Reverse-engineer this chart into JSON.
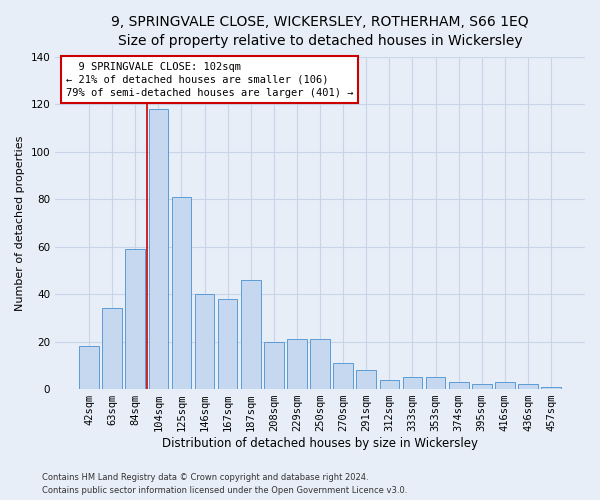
{
  "title1": "9, SPRINGVALE CLOSE, WICKERSLEY, ROTHERHAM, S66 1EQ",
  "title2": "Size of property relative to detached houses in Wickersley",
  "xlabel": "Distribution of detached houses by size in Wickersley",
  "ylabel": "Number of detached properties",
  "categories": [
    "42sqm",
    "63sqm",
    "84sqm",
    "104sqm",
    "125sqm",
    "146sqm",
    "167sqm",
    "187sqm",
    "208sqm",
    "229sqm",
    "250sqm",
    "270sqm",
    "291sqm",
    "312sqm",
    "333sqm",
    "353sqm",
    "374sqm",
    "395sqm",
    "416sqm",
    "436sqm",
    "457sqm"
  ],
  "values": [
    18,
    34,
    59,
    118,
    81,
    40,
    38,
    46,
    20,
    21,
    21,
    11,
    8,
    4,
    5,
    5,
    3,
    2,
    3,
    2,
    1
  ],
  "bar_color": "#c5d8f0",
  "bar_edge_color": "#5b9bd5",
  "grid_color": "#c8d4e8",
  "annotation_text": "  9 SPRINGVALE CLOSE: 102sqm\n← 21% of detached houses are smaller (106)\n79% of semi-detached houses are larger (401) →",
  "annotation_box_color": "#ffffff",
  "annotation_box_edge": "#cc0000",
  "subject_line_color": "#cc0000",
  "footer1": "Contains HM Land Registry data © Crown copyright and database right 2024.",
  "footer2": "Contains public sector information licensed under the Open Government Licence v3.0.",
  "ylim": [
    0,
    140
  ],
  "yticks": [
    0,
    20,
    40,
    60,
    80,
    100,
    120,
    140
  ],
  "bg_color": "#e8eef8",
  "plot_bg_color": "#e8eef8",
  "title1_fontsize": 10,
  "title2_fontsize": 9,
  "xlabel_fontsize": 8.5,
  "ylabel_fontsize": 8,
  "tick_fontsize": 7.5,
  "annot_fontsize": 7.5,
  "footer_fontsize": 6,
  "bar_width": 0.85,
  "subject_bar_index": 3,
  "linewidth": 1.2
}
